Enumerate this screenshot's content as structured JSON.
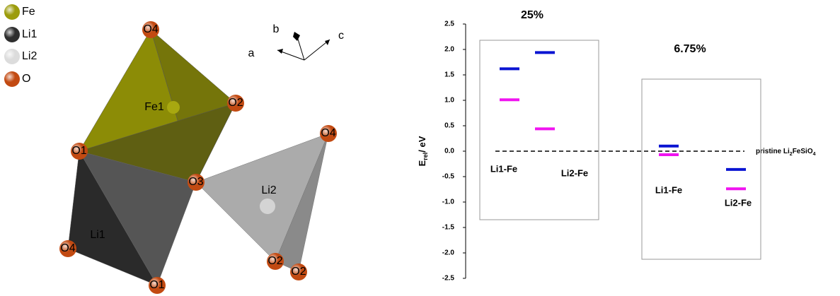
{
  "diagram": {
    "legend": [
      {
        "label": "Fe",
        "color": "#9c9c0c"
      },
      {
        "label": "Li1",
        "color": "#2e2e2e"
      },
      {
        "label": "Li2",
        "color": "#dcdcdc"
      },
      {
        "label": "O",
        "color": "#c24a12"
      }
    ],
    "atom_labels": [
      "O4",
      "Fe1",
      "O2",
      "O1",
      "O3",
      "O4",
      "Li2",
      "Li1",
      "O4",
      "O1",
      "O2",
      "O2"
    ],
    "axes": [
      "b",
      "a",
      "c"
    ]
  },
  "chart_data": {
    "type": "level",
    "ylabel": "E",
    "ylabel_sub": "rel",
    "ylabel_rest": "/ eV",
    "ylim": [
      -2.5,
      2.5
    ],
    "yticks": [
      2.5,
      {
        "value": 2.0,
        "label": "2.0"
      },
      1.5,
      {
        "value": 1.0,
        "label": "1.0"
      },
      0.5,
      {
        "value": 0.0,
        "label": "0.0"
      },
      -0.5,
      {
        "value": -1.0,
        "label": "-1.0"
      },
      -1.5,
      {
        "value": -2.0,
        "label": "-2.0"
      },
      -2.5
    ],
    "reference": {
      "value": 0,
      "label": [
        "pristine Li",
        "2",
        "FeSiO",
        "4"
      ]
    },
    "groups": [
      {
        "title": "25%",
        "categories": [
          "Li1-Fe",
          "Li2-Fe"
        ],
        "series": [
          {
            "color": "#0a14d2",
            "values": [
              1.62,
              1.94
            ]
          },
          {
            "color": "#f014f0",
            "values": [
              1.01,
              0.44
            ]
          }
        ]
      },
      {
        "title": "6.75%",
        "categories": [
          "Li1-Fe",
          "Li2-Fe"
        ],
        "series": [
          {
            "color": "#0a14d2",
            "values": [
              0.1,
              -0.36
            ]
          },
          {
            "color": "#f014f0",
            "values": [
              -0.07,
              -0.74
            ]
          }
        ]
      }
    ]
  }
}
